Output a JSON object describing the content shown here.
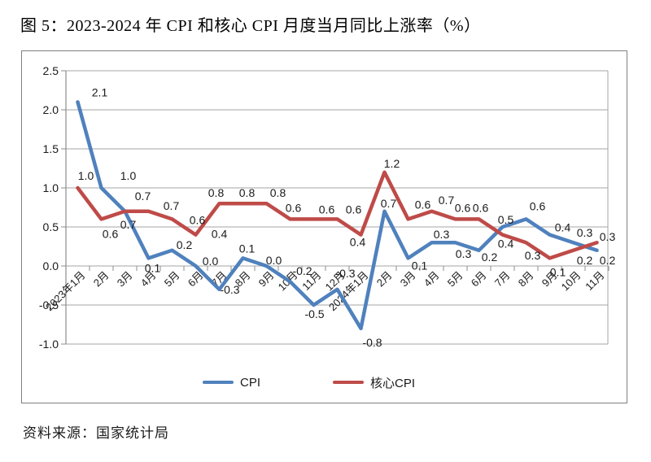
{
  "page": {
    "title": "图 5：2023-2024 年 CPI 和核心 CPI 月度当月同比上涨率（%）",
    "source": "资料来源：国家统计局"
  },
  "colors": {
    "cpi_line": "#4F81BD",
    "core_cpi_line": "#BE4B48",
    "gridline": "#A6A6A6",
    "axis": "#8C8C8C",
    "chart_border": "#7F7F7F",
    "label_text": "#1A1A1A"
  },
  "chart_data": {
    "type": "line",
    "title": "图 5：2023-2024 年 CPI 和核心 CPI 月度当月同比上涨率（%）",
    "categories": [
      "2023年1月",
      "2月",
      "3月",
      "4月",
      "5月",
      "6月",
      "7月",
      "8月",
      "9月",
      "10月",
      "11月",
      "12月",
      "2024年1月",
      "2月",
      "3月",
      "4月",
      "5月",
      "6月",
      "7月",
      "8月",
      "9月",
      "10月",
      "11月"
    ],
    "series": [
      {
        "name": "CPI",
        "color": "#4F81BD",
        "values": [
          2.1,
          1.0,
          0.7,
          0.1,
          0.2,
          0.0,
          -0.3,
          0.1,
          0.0,
          -0.2,
          -0.5,
          -0.3,
          -0.8,
          0.7,
          0.1,
          0.3,
          0.3,
          0.2,
          0.5,
          0.6,
          0.4,
          0.3,
          0.2
        ],
        "label_offsets": [
          [
            27,
            -12
          ],
          [
            33,
            -15
          ],
          [
            4,
            16
          ],
          [
            5,
            12
          ],
          [
            15,
            -7
          ],
          [
            18,
            -6
          ],
          [
            13,
            0
          ],
          [
            5,
            -12
          ],
          [
            9,
            -7
          ],
          [
            15,
            -13
          ],
          [
            1,
            11
          ],
          [
            10,
            -20
          ],
          [
            14,
            17
          ],
          [
            5,
            -10
          ],
          [
            14,
            9
          ],
          [
            12,
            -10
          ],
          [
            10,
            14
          ],
          [
            13,
            8
          ],
          [
            4,
            -9
          ],
          [
            14,
            -16
          ],
          [
            16,
            -9
          ],
          [
            14,
            -12
          ],
          [
            13,
            12
          ]
        ]
      },
      {
        "name": "核心CPI",
        "color": "#BE4B48",
        "values": [
          1.0,
          0.6,
          0.7,
          0.7,
          0.6,
          0.4,
          0.8,
          0.8,
          0.8,
          0.6,
          0.6,
          0.6,
          0.4,
          1.2,
          0.6,
          0.7,
          0.6,
          0.6,
          0.4,
          0.3,
          0.1,
          0.2,
          0.3
        ],
        "label_offsets": [
          [
            10,
            -15
          ],
          [
            11,
            18
          ],
          [
            22,
            -19
          ],
          [
            28,
            -7
          ],
          [
            31,
            1
          ],
          [
            29,
            -1
          ],
          [
            -4,
            -13
          ],
          [
            5,
            -13
          ],
          [
            14,
            -13
          ],
          [
            4,
            -14
          ],
          [
            16,
            -12
          ],
          [
            20,
            -12
          ],
          [
            -4,
            9
          ],
          [
            9,
            -11
          ],
          [
            18,
            -18
          ],
          [
            18,
            -14
          ],
          [
            9,
            -14
          ],
          [
            2,
            -14
          ],
          [
            4,
            11
          ],
          [
            8,
            16
          ],
          [
            10,
            17
          ],
          [
            14,
            12
          ],
          [
            13,
            -7
          ]
        ]
      }
    ],
    "xlabel": "",
    "ylabel": "",
    "ylim": [
      -1.0,
      2.5
    ],
    "ytick_step": 0.5,
    "grid": true,
    "legend_position": "bottom"
  }
}
